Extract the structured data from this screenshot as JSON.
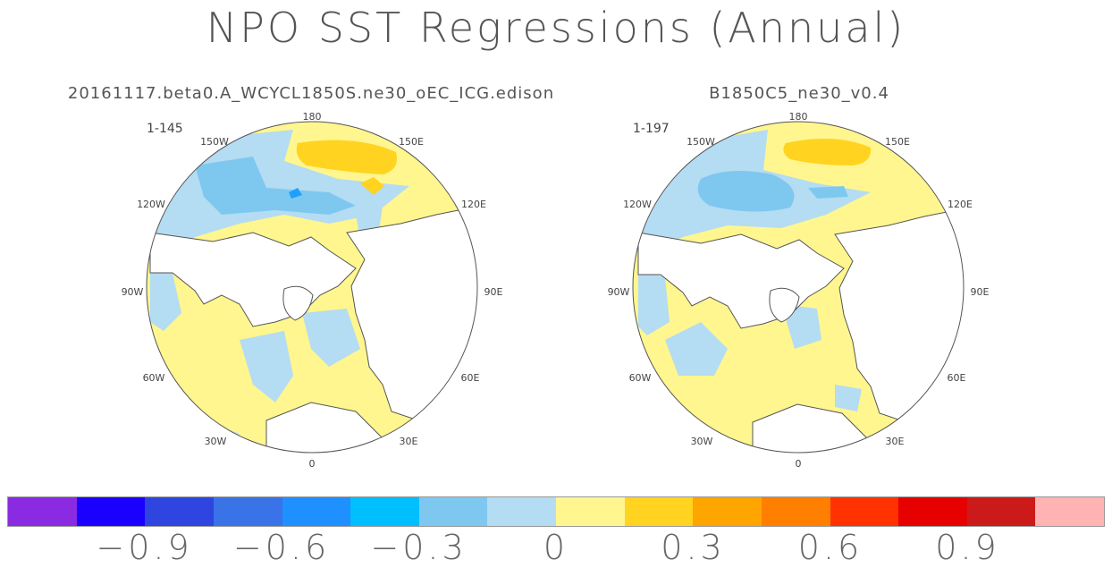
{
  "title": "NPO SST Regressions (Annual)",
  "panels": [
    {
      "title": "20161117.beta0.A_WCYCL1850S.ne30_oEC_ICG.edison",
      "years": "1-145",
      "lon_labels": {
        "top": "180",
        "top_left": "150W",
        "top_right": "150E",
        "upper_left": "120W",
        "upper_right": "120E",
        "left": "90W",
        "right": "90E",
        "lower_left": "60W",
        "lower_right": "60E",
        "bottom_left": "30W",
        "bottom_right": "30E",
        "bottom": "0"
      }
    },
    {
      "title": "B1850C5_ne30_v0.4",
      "years": "1-197",
      "lon_labels": {
        "top": "180",
        "top_left": "150W",
        "top_right": "150E",
        "upper_left": "120W",
        "upper_right": "120E",
        "left": "90W",
        "right": "90E",
        "lower_left": "60W",
        "lower_right": "60E",
        "bottom_left": "30W",
        "bottom_right": "30E",
        "bottom": "0"
      }
    }
  ],
  "colorbar": {
    "colors": [
      "#8a2be2",
      "#1a00ff",
      "#2e45e0",
      "#3a72e8",
      "#1e90ff",
      "#00bfff",
      "#7ec8f0",
      "#b4dcf2",
      "#fff68f",
      "#ffd320",
      "#ffa500",
      "#ff7f00",
      "#ff3200",
      "#e60000",
      "#cc1a1a",
      "#ffb3b3"
    ],
    "labels": [
      "−0.9",
      "−0.6",
      "−0.3",
      "0",
      "0.3",
      "0.6",
      "0.9"
    ]
  }
}
